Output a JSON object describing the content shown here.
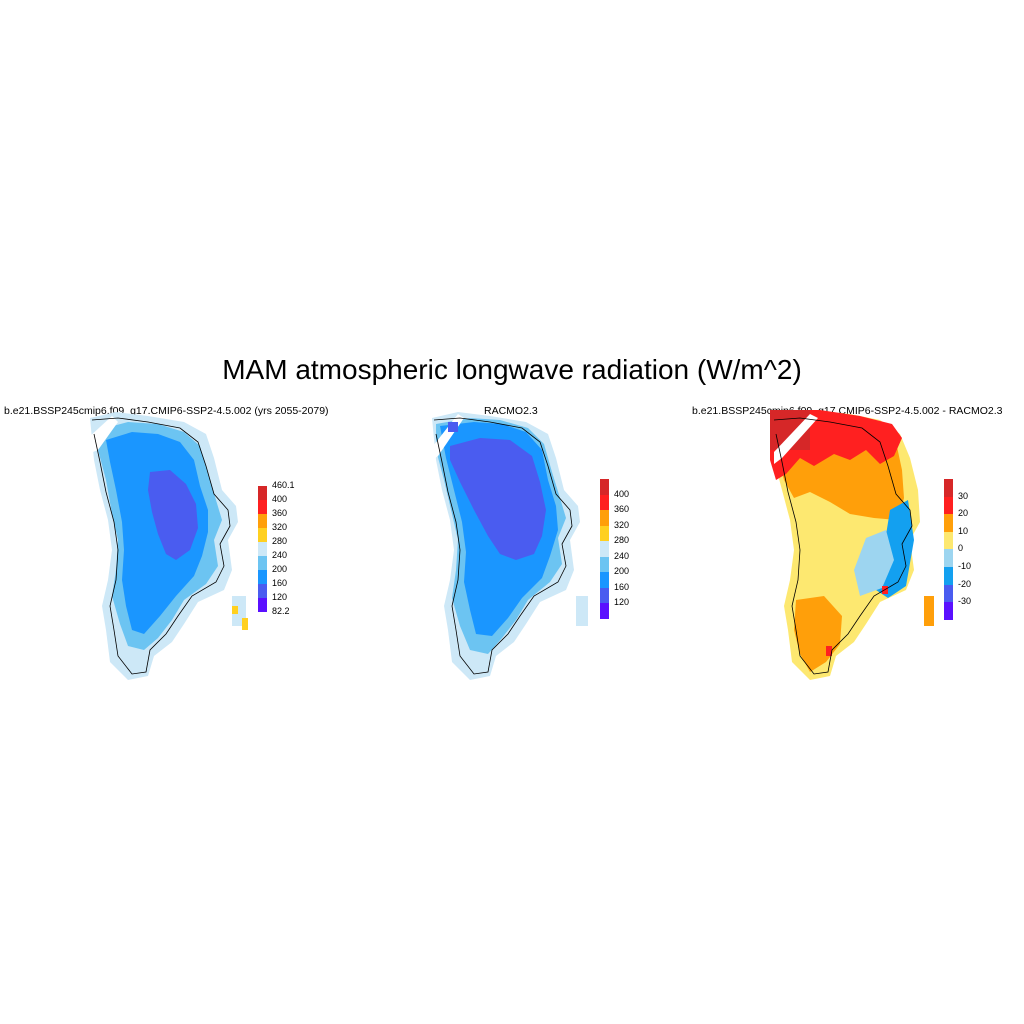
{
  "title": "MAM atmospheric longwave radiation (W/m^2)",
  "panels": [
    {
      "id": "model",
      "subtitle": "b.e21.BSSP245cmip6.f09_g17.CMIP6-SSP2-4.5.002 (yrs 2055-2079)",
      "colorbar": {
        "labels": [
          "460.1",
          "400",
          "360",
          "320",
          "280",
          "240",
          "200",
          "160",
          "120",
          "82.2"
        ],
        "colors": [
          "#d62728",
          "#ff2020",
          "#ff9f0a",
          "#ffd020",
          "#cde8f7",
          "#6cc4f2",
          "#1a96ff",
          "#4a5cf0",
          "#5a10ff"
        ]
      }
    },
    {
      "id": "reference",
      "subtitle": "RACMO2.3",
      "colorbar": {
        "labels": [
          "400",
          "360",
          "320",
          "280",
          "240",
          "200",
          "160",
          "120"
        ],
        "colors": [
          "#d62728",
          "#ff2020",
          "#ff9f0a",
          "#ffd020",
          "#cde8f7",
          "#6cc4f2",
          "#1a96ff",
          "#4a5cf0",
          "#5a10ff"
        ]
      }
    },
    {
      "id": "difference",
      "subtitle": "b.e21.BSSP245cmip6.f09_g17.CMIP6-SSP2-4.5.002 - RACMO2.3",
      "colorbar": {
        "labels": [
          "30",
          "20",
          "10",
          "0",
          "-10",
          "-20",
          "-30"
        ],
        "colors": [
          "#d62728",
          "#ff2020",
          "#ff9f0a",
          "#fde870",
          "#9dd5f0",
          "#13a0f0",
          "#4a5cf0",
          "#5a10ff"
        ]
      }
    }
  ]
}
